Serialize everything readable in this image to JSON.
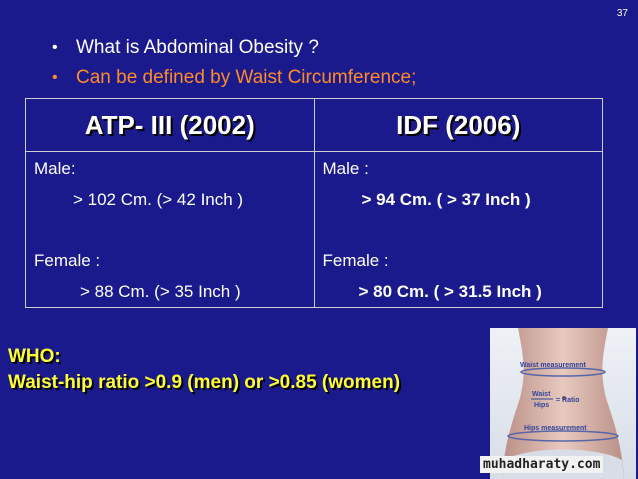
{
  "slide_number": "37",
  "bullets": [
    {
      "text": "What is Abdominal Obesity ?",
      "color": "#ffffff"
    },
    {
      "text": "Can be defined by Waist Circumference;",
      "color": "#ff8a2a"
    }
  ],
  "table": {
    "headers": [
      "ATP- III (2002)",
      "IDF (2006)"
    ],
    "atp": {
      "male_label": "Male:",
      "male_value": "> 102 Cm. (> 42 Inch )",
      "female_label": "Female :",
      "female_value": "> 88 Cm. (> 35 Inch )"
    },
    "idf": {
      "male_label": "Male :",
      "male_value": "> 94 Cm. ( > 37 Inch )",
      "female_label": "Female :",
      "female_value": "> 80 Cm. ( > 31.5 Inch )"
    }
  },
  "who": {
    "title": "WHO:",
    "text": "Waist-hip ratio >0.9 (men) or >0.85 (women)"
  },
  "figure": {
    "waist_label": "Waist measurement",
    "ratio_top": "Waist",
    "ratio_bottom": "Hips",
    "ratio_result": "= Ratio",
    "hips_label": "Hips measurement"
  },
  "watermark": "muhadharaty.com",
  "colors": {
    "background": "#1a1a8c",
    "highlight": "#ff8a2a",
    "who_text": "#ffff33"
  }
}
